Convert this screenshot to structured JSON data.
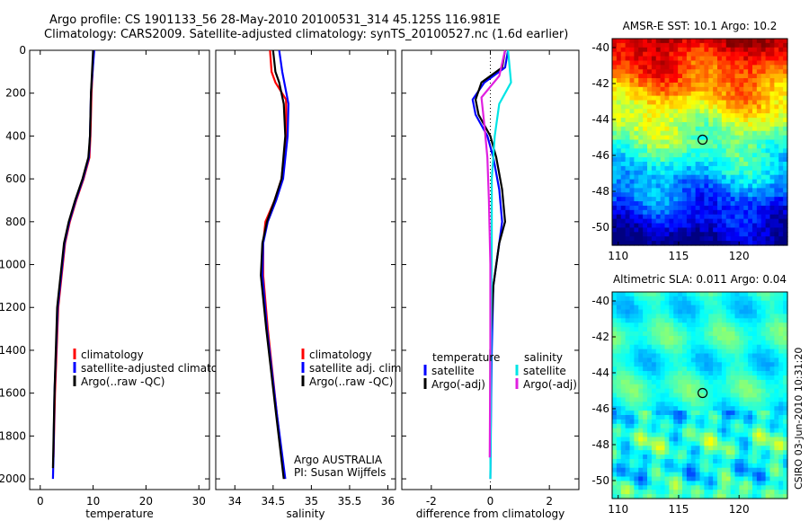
{
  "title": {
    "line1": "Argo profile: CS 1901133_56 28-May-2010 20100531_314 45.125S 116.981E",
    "line2": "Climatology: CARS2009. Satellite-adjusted climatology: synTS_20100527.nc (1.6d earlier)"
  },
  "colors": {
    "climatology": "#ff0000",
    "satellite": "#0000ff",
    "argo": "#000000",
    "sal_satellite": "#00e5e5",
    "sal_argo": "#e020e0"
  },
  "chart_data": [
    {
      "type": "line",
      "id": "temperature",
      "xlabel": "temperature",
      "xlim": [
        -2,
        32
      ],
      "xticks": [
        0,
        10,
        20,
        30
      ],
      "ylim": [
        0,
        2050
      ],
      "yticks": [
        0,
        200,
        400,
        600,
        800,
        1000,
        1200,
        1400,
        1600,
        1800,
        2000
      ],
      "legend": [
        "climatology",
        "satellite-adjusted climatology",
        "Argo(..raw -QC)"
      ],
      "series": [
        {
          "name": "climatology",
          "color": "#ff0000",
          "x": [
            10.1,
            9.9,
            9.7,
            9.5,
            9.3,
            8.2,
            6.8,
            5.6,
            4.7,
            3.4,
            2.8,
            2.5
          ],
          "y": [
            0,
            100,
            200,
            400,
            500,
            600,
            700,
            800,
            900,
            1200,
            1600,
            1900
          ]
        },
        {
          "name": "satellite-adjusted climatology",
          "color": "#0000ff",
          "x": [
            10.2,
            9.9,
            9.6,
            9.4,
            9.2,
            8.1,
            6.7,
            5.5,
            4.6,
            3.3,
            2.7,
            2.5,
            2.4
          ],
          "y": [
            0,
            100,
            200,
            400,
            500,
            600,
            700,
            800,
            900,
            1200,
            1600,
            1900,
            2000
          ]
        },
        {
          "name": "Argo(..raw -QC)",
          "color": "#000000",
          "x": [
            10.0,
            9.8,
            9.6,
            9.4,
            9.1,
            8.0,
            6.6,
            5.4,
            4.5,
            3.2,
            2.7,
            2.4
          ],
          "y": [
            0,
            100,
            200,
            400,
            500,
            600,
            700,
            800,
            900,
            1200,
            1600,
            1950
          ]
        }
      ]
    },
    {
      "type": "line",
      "id": "salinity",
      "xlabel": "salinity",
      "xlim": [
        33.75,
        36.1
      ],
      "xticks": [
        34,
        34.5,
        35,
        35.5,
        36
      ],
      "xticklabels": [
        "34",
        "34.5",
        "35",
        "35.5",
        "36"
      ],
      "ylim": [
        0,
        2050
      ],
      "legend": [
        "climatology",
        "satellite adj. clim.",
        "Argo(..raw -QC)"
      ],
      "annotation": [
        "Argo AUSTRALIA",
        "PI: Susan Wijffels"
      ],
      "series": [
        {
          "name": "climatology",
          "color": "#ff0000",
          "x": [
            34.46,
            34.48,
            34.53,
            34.67,
            34.67,
            34.61,
            34.52,
            34.4,
            34.37,
            34.37,
            34.43,
            34.55,
            34.65
          ],
          "y": [
            0,
            100,
            150,
            230,
            400,
            600,
            700,
            800,
            900,
            1050,
            1300,
            1700,
            2000
          ]
        },
        {
          "name": "satellite adj. clim.",
          "color": "#0000ff",
          "x": [
            34.58,
            34.62,
            34.7,
            34.69,
            34.63,
            34.54,
            34.43,
            34.37,
            34.36,
            34.42,
            34.55,
            34.66
          ],
          "y": [
            0,
            100,
            250,
            400,
            600,
            700,
            800,
            900,
            1050,
            1300,
            1700,
            2000
          ]
        },
        {
          "name": "Argo(..raw -QC)",
          "color": "#000000",
          "x": [
            34.5,
            34.53,
            34.58,
            34.64,
            34.66,
            34.61,
            34.52,
            34.42,
            34.36,
            34.34,
            34.41,
            34.54,
            34.64
          ],
          "y": [
            0,
            100,
            150,
            250,
            400,
            600,
            700,
            800,
            900,
            1050,
            1300,
            1700,
            2000
          ]
        }
      ]
    },
    {
      "type": "line",
      "id": "difference",
      "xlabel": "difference from climatology",
      "xlim": [
        -3,
        3
      ],
      "xticks": [
        -2,
        0,
        2
      ],
      "ylim": [
        0,
        2050
      ],
      "legend_temperature_header": "temperature",
      "legend_salinity_header": "salinity",
      "legend": [
        "satellite",
        "Argo(-adj)",
        "satellite",
        "Argo(-adj)"
      ],
      "series": [
        {
          "name": "temperature satellite",
          "color": "#0000ff",
          "x": [
            0.6,
            0.5,
            -0.2,
            -0.6,
            -0.5,
            -0.1,
            0.1,
            0.3,
            0.4,
            0.3,
            0.1,
            0.05,
            0.02,
            0.0
          ],
          "y": [
            0,
            80,
            150,
            230,
            300,
            400,
            500,
            650,
            800,
            900,
            1100,
            1400,
            1700,
            2000
          ]
        },
        {
          "name": "temperature Argo(-adj)",
          "color": "#000000",
          "x": [
            0.5,
            0.4,
            -0.3,
            -0.5,
            -0.4,
            0.0,
            0.2,
            0.4,
            0.5,
            0.3,
            0.1,
            0.0,
            0.0
          ],
          "y": [
            0,
            80,
            150,
            230,
            300,
            400,
            500,
            650,
            800,
            900,
            1100,
            1400,
            1700
          ]
        },
        {
          "name": "salinity satellite",
          "color": "#00e5e5",
          "x": [
            0.6,
            0.7,
            0.3,
            0.15,
            0.05,
            0.05,
            0.03,
            0.02,
            0.0
          ],
          "y": [
            0,
            150,
            250,
            400,
            600,
            900,
            1200,
            1600,
            2000
          ]
        },
        {
          "name": "salinity Argo(-adj)",
          "color": "#e020e0",
          "x": [
            0.5,
            0.3,
            -0.3,
            -0.2,
            -0.1,
            -0.05,
            0.0,
            0.0,
            -0.02
          ],
          "y": [
            0,
            120,
            220,
            350,
            500,
            700,
            1000,
            1400,
            1900
          ]
        }
      ]
    },
    {
      "type": "heatmap",
      "id": "sst_map",
      "title": "AMSR-E SST: 10.1 Argo: 10.2",
      "xlim": [
        109.5,
        124
      ],
      "ylim": [
        -51,
        -39.5
      ],
      "xticks": [
        110,
        115,
        120
      ],
      "yticks": [
        -40,
        -42,
        -44,
        -46,
        -48,
        -50
      ],
      "float_position": {
        "lon": 116.981,
        "lat": -45.125
      }
    },
    {
      "type": "heatmap",
      "id": "sla_map",
      "title": "Altimetric SLA: 0.011 Argo: 0.04",
      "xlim": [
        109.5,
        124
      ],
      "ylim": [
        -51,
        -39.5
      ],
      "xticks": [
        110,
        115,
        120
      ],
      "yticks": [
        -40,
        -42,
        -44,
        -46,
        -48,
        -50
      ],
      "float_position": {
        "lon": 116.981,
        "lat": -45.125
      }
    }
  ],
  "credit": "CSIRO 03-Jun-2010 10:31:20"
}
